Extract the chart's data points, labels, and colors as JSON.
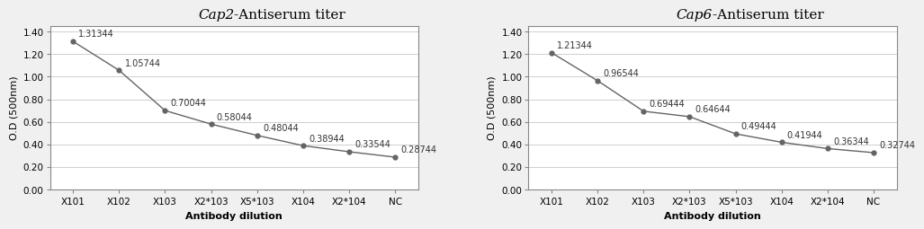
{
  "charts": [
    {
      "title_italic": "Cap2",
      "title_rest": "-Antiserum titer",
      "x_labels_raw": [
        "X101",
        "X102",
        "X103",
        "X2*103",
        "X5*103",
        "X104",
        "X2*104",
        "NC"
      ],
      "y_values": [
        1.31344,
        1.05744,
        0.70044,
        0.58044,
        0.48044,
        0.38944,
        0.33544,
        0.28744
      ],
      "annotations": [
        "1.31344",
        "1.05744",
        "0.70044",
        "0.58044",
        "0.48044",
        "0.38944",
        "0.33544",
        "0.28744"
      ]
    },
    {
      "title_italic": "Cap6",
      "title_rest": "-Antiserum titer",
      "x_labels_raw": [
        "X101",
        "X102",
        "X103",
        "X2*103",
        "X5*103",
        "X104",
        "X2*104",
        "NC"
      ],
      "y_values": [
        1.21344,
        0.96544,
        0.69444,
        0.64644,
        0.49444,
        0.41944,
        0.36344,
        0.32744
      ],
      "annotations": [
        "1.21344",
        "0.96544",
        "0.69444",
        "0.64644",
        "0.49444",
        "0.41944",
        "0.36344",
        "0.32744"
      ]
    }
  ],
  "ylim": [
    0.0,
    1.45
  ],
  "yticks": [
    0.0,
    0.2,
    0.4,
    0.6,
    0.8,
    1.0,
    1.2,
    1.4
  ],
  "ylabel": "O.D (500nm)",
  "xlabel": "Antibody dilution",
  "line_color": "#646464",
  "marker_color": "#646464",
  "bg_color": "#f0f0f0",
  "plot_bg_color": "#ffffff",
  "grid_color": "#c8c8c8",
  "title_fontsize": 11,
  "label_fontsize": 8,
  "tick_fontsize": 7.5,
  "annot_fontsize": 7
}
